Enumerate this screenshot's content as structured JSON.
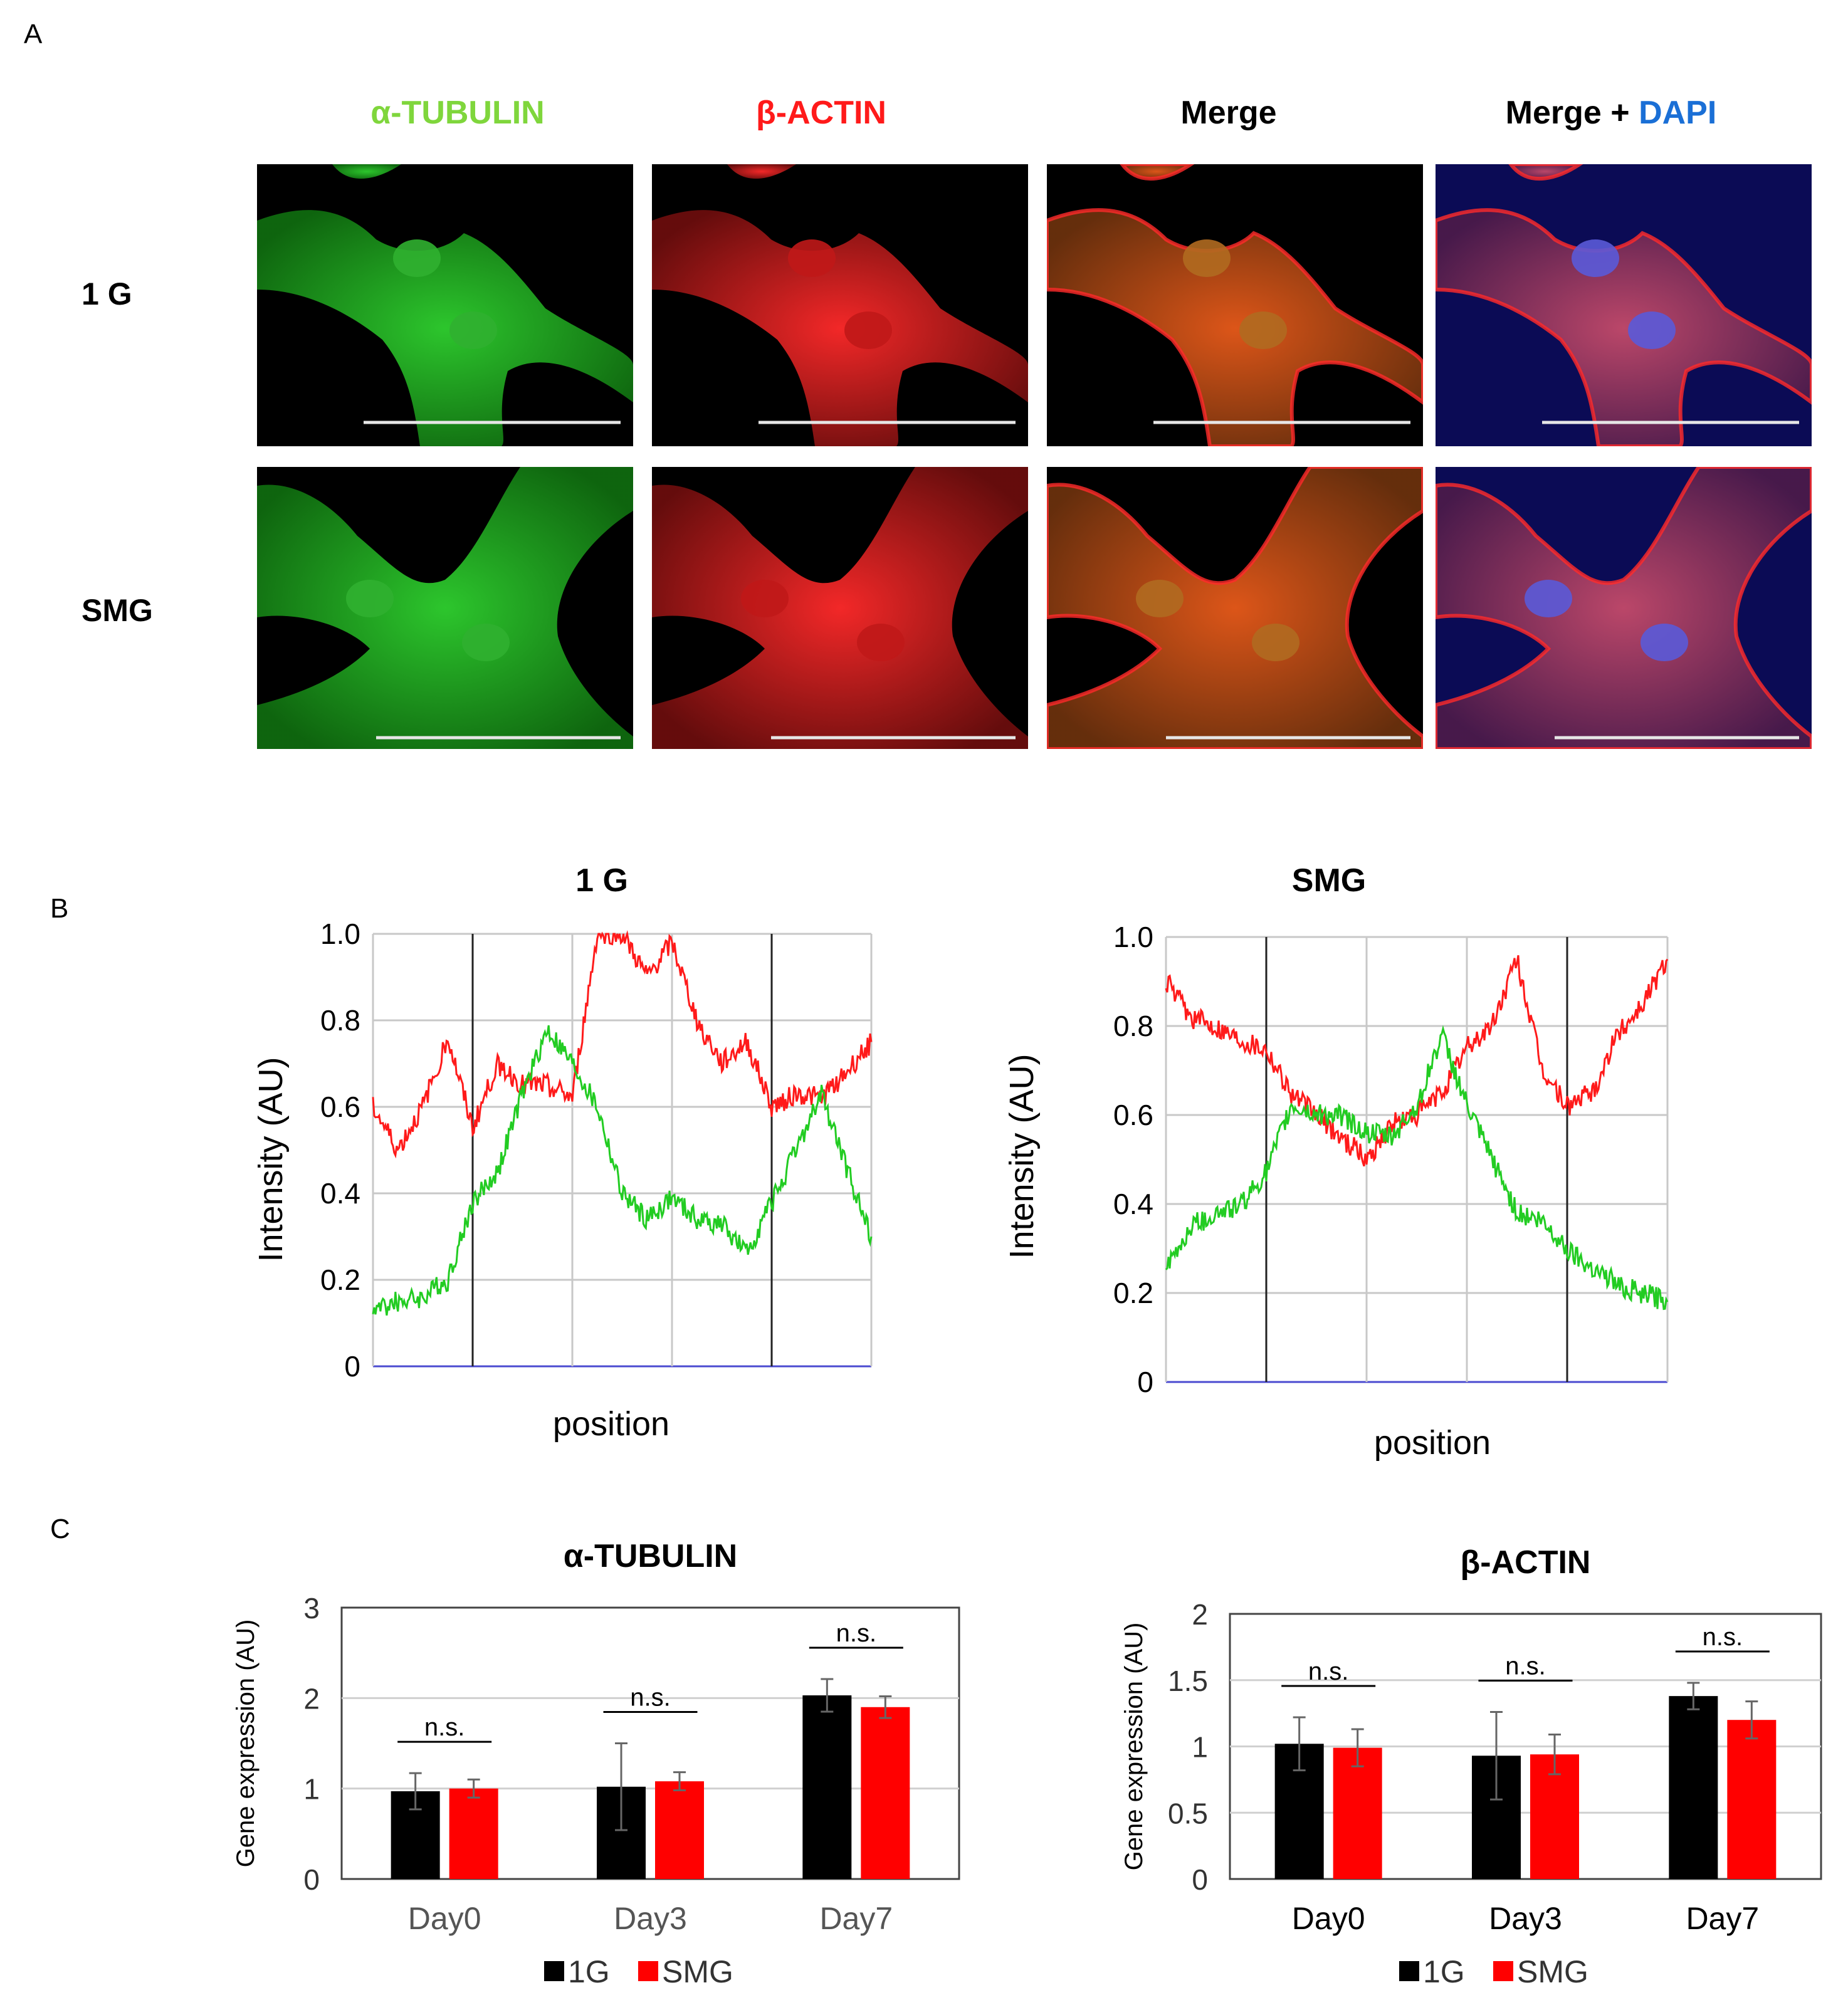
{
  "panel_a": {
    "label": "A",
    "columns": [
      {
        "text": "α-TUBULIN",
        "color": "#7fd63c"
      },
      {
        "text": "β-ACTIN",
        "color": "#ff1a1a"
      },
      {
        "text": "Merge",
        "color": "#000000"
      },
      {
        "prefix": "Merge + ",
        "suffix": "DAPI",
        "color": "#000000",
        "accent": "#1a6fd6"
      }
    ],
    "rows": [
      "1 G",
      "SMG"
    ],
    "channels": [
      "green",
      "red",
      "merge",
      "merge-dapi"
    ]
  },
  "panel_b": {
    "label": "B",
    "charts": [
      {
        "title": "1 G",
        "xlabel": "position",
        "ylabel": "Intensity (AU)",
        "yticks": [
          "0",
          "0.2",
          "0.4",
          "0.6",
          "0.8",
          "1.0"
        ]
      },
      {
        "title": "SMG",
        "xlabel": "position",
        "ylabel": "Intensity (AU)",
        "yticks": [
          "0",
          "0.2",
          "0.4",
          "0.6",
          "0.8",
          "1.0"
        ]
      }
    ]
  },
  "panel_c": {
    "label": "C"
  },
  "chart_data": [
    {
      "type": "line",
      "title": "1 G",
      "xlabel": "position",
      "ylabel": "Intensity (AU)",
      "ylim": [
        0,
        1.0
      ],
      "x": [
        0,
        0.05,
        0.1,
        0.15,
        0.2,
        0.25,
        0.3,
        0.35,
        0.4,
        0.45,
        0.5,
        0.55,
        0.6,
        0.65,
        0.7,
        0.75,
        0.8,
        0.85,
        0.9,
        0.95,
        1.0
      ],
      "series": [
        {
          "name": "β-ACTIN",
          "color": "#ff1a1a",
          "values": [
            0.6,
            0.5,
            0.6,
            0.76,
            0.55,
            0.7,
            0.65,
            0.65,
            0.62,
            1.0,
            1.0,
            0.9,
            0.98,
            0.8,
            0.7,
            0.75,
            0.6,
            0.63,
            0.62,
            0.68,
            0.75
          ]
        },
        {
          "name": "α-TUBULIN",
          "color": "#22cc22",
          "values": [
            0.13,
            0.15,
            0.16,
            0.2,
            0.38,
            0.45,
            0.63,
            0.78,
            0.7,
            0.6,
            0.4,
            0.34,
            0.39,
            0.34,
            0.33,
            0.26,
            0.38,
            0.5,
            0.63,
            0.46,
            0.3
          ]
        }
      ]
    },
    {
      "type": "line",
      "title": "SMG",
      "xlabel": "position",
      "ylabel": "Intensity (AU)",
      "ylim": [
        0,
        1.0
      ],
      "x": [
        0,
        0.05,
        0.1,
        0.15,
        0.2,
        0.25,
        0.3,
        0.35,
        0.4,
        0.45,
        0.5,
        0.55,
        0.6,
        0.65,
        0.7,
        0.75,
        0.8,
        0.85,
        0.9,
        0.95,
        1.0
      ],
      "series": [
        {
          "name": "β-ACTIN",
          "color": "#ff1a1a",
          "values": [
            0.9,
            0.82,
            0.8,
            0.77,
            0.75,
            0.65,
            0.6,
            0.55,
            0.5,
            0.58,
            0.6,
            0.65,
            0.75,
            0.8,
            0.95,
            0.7,
            0.62,
            0.65,
            0.78,
            0.85,
            0.95
          ]
        },
        {
          "name": "α-TUBULIN",
          "color": "#22cc22",
          "values": [
            0.25,
            0.35,
            0.38,
            0.4,
            0.47,
            0.62,
            0.6,
            0.6,
            0.56,
            0.55,
            0.62,
            0.78,
            0.62,
            0.5,
            0.38,
            0.36,
            0.3,
            0.26,
            0.22,
            0.2,
            0.18
          ]
        }
      ]
    },
    {
      "type": "bar",
      "title": "α-TUBULIN",
      "ylabel": "Gene expression (AU)",
      "categories": [
        "Day0",
        "Day3",
        "Day7"
      ],
      "ylim": [
        0,
        3
      ],
      "yticks": [
        "0",
        "1",
        "2",
        "3"
      ],
      "series": [
        {
          "name": "1G",
          "color": "#000000",
          "values": [
            0.97,
            1.02,
            2.03
          ],
          "errors": [
            0.2,
            0.48,
            0.18
          ]
        },
        {
          "name": "SMG",
          "color": "#ff0000",
          "values": [
            1.0,
            1.08,
            1.9
          ],
          "errors": [
            0.1,
            0.1,
            0.12
          ]
        }
      ],
      "annotations": [
        "n.s.",
        "n.s.",
        "n.s."
      ]
    },
    {
      "type": "bar",
      "title": "β-ACTIN",
      "ylabel": "Gene expression (AU)",
      "categories": [
        "Day0",
        "Day3",
        "Day7"
      ],
      "ylim": [
        0,
        2
      ],
      "yticks": [
        "0",
        "0.5",
        "1",
        "1.5",
        "2"
      ],
      "series": [
        {
          "name": "1G",
          "color": "#000000",
          "values": [
            1.02,
            0.93,
            1.38
          ],
          "errors": [
            0.2,
            0.33,
            0.1
          ]
        },
        {
          "name": "SMG",
          "color": "#ff0000",
          "values": [
            0.99,
            0.94,
            1.2
          ],
          "errors": [
            0.14,
            0.15,
            0.14
          ]
        }
      ],
      "annotations": [
        "n.s.",
        "n.s.",
        "n.s."
      ]
    }
  ]
}
